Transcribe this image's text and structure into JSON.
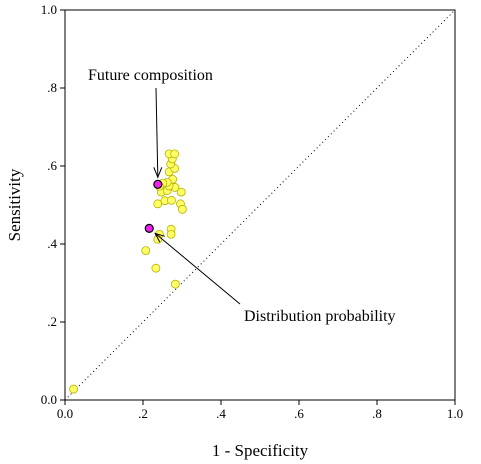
{
  "chart_data": {
    "type": "scatter",
    "title": "",
    "xlabel": "1 - Specificity",
    "ylabel": "Sensitivity",
    "xlim": [
      0.0,
      1.0
    ],
    "ylim": [
      0.0,
      1.0
    ],
    "x_ticks": [
      "0.0",
      ".2",
      ".4",
      ".6",
      ".8",
      "1.0"
    ],
    "y_ticks": [
      "0.0",
      ".2",
      ".4",
      ".6",
      ".8",
      "1.0"
    ],
    "grid": false,
    "reference_line": {
      "style": "dotted",
      "from": [
        0,
        0
      ],
      "to": [
        1,
        1
      ]
    },
    "series": [
      {
        "color": "#ffff66",
        "stroke": "#b8b000",
        "points": [
          [
            0.022,
            0.028
          ],
          [
            0.207,
            0.383
          ],
          [
            0.233,
            0.338
          ],
          [
            0.283,
            0.297
          ],
          [
            0.242,
            0.425
          ],
          [
            0.238,
            0.412
          ],
          [
            0.272,
            0.438
          ],
          [
            0.272,
            0.425
          ],
          [
            0.238,
            0.503
          ],
          [
            0.256,
            0.511
          ],
          [
            0.273,
            0.512
          ],
          [
            0.296,
            0.503
          ],
          [
            0.301,
            0.489
          ],
          [
            0.247,
            0.533
          ],
          [
            0.262,
            0.537
          ],
          [
            0.282,
            0.545
          ],
          [
            0.298,
            0.533
          ],
          [
            0.267,
            0.549
          ],
          [
            0.276,
            0.566
          ],
          [
            0.262,
            0.558
          ],
          [
            0.267,
            0.585
          ],
          [
            0.281,
            0.594
          ],
          [
            0.271,
            0.605
          ],
          [
            0.275,
            0.618
          ],
          [
            0.267,
            0.631
          ],
          [
            0.281,
            0.631
          ],
          [
            0.251,
            0.556
          ],
          [
            0.242,
            0.548
          ]
        ]
      },
      {
        "color": "#ee22ee",
        "stroke": "#000000",
        "points": [
          [
            0.238,
            0.553
          ],
          [
            0.216,
            0.44
          ]
        ]
      }
    ],
    "annotations": [
      {
        "text": "Future composition",
        "point": [
          0.238,
          0.553
        ]
      },
      {
        "text": "Distribution probability",
        "point": [
          0.216,
          0.44
        ]
      }
    ]
  }
}
